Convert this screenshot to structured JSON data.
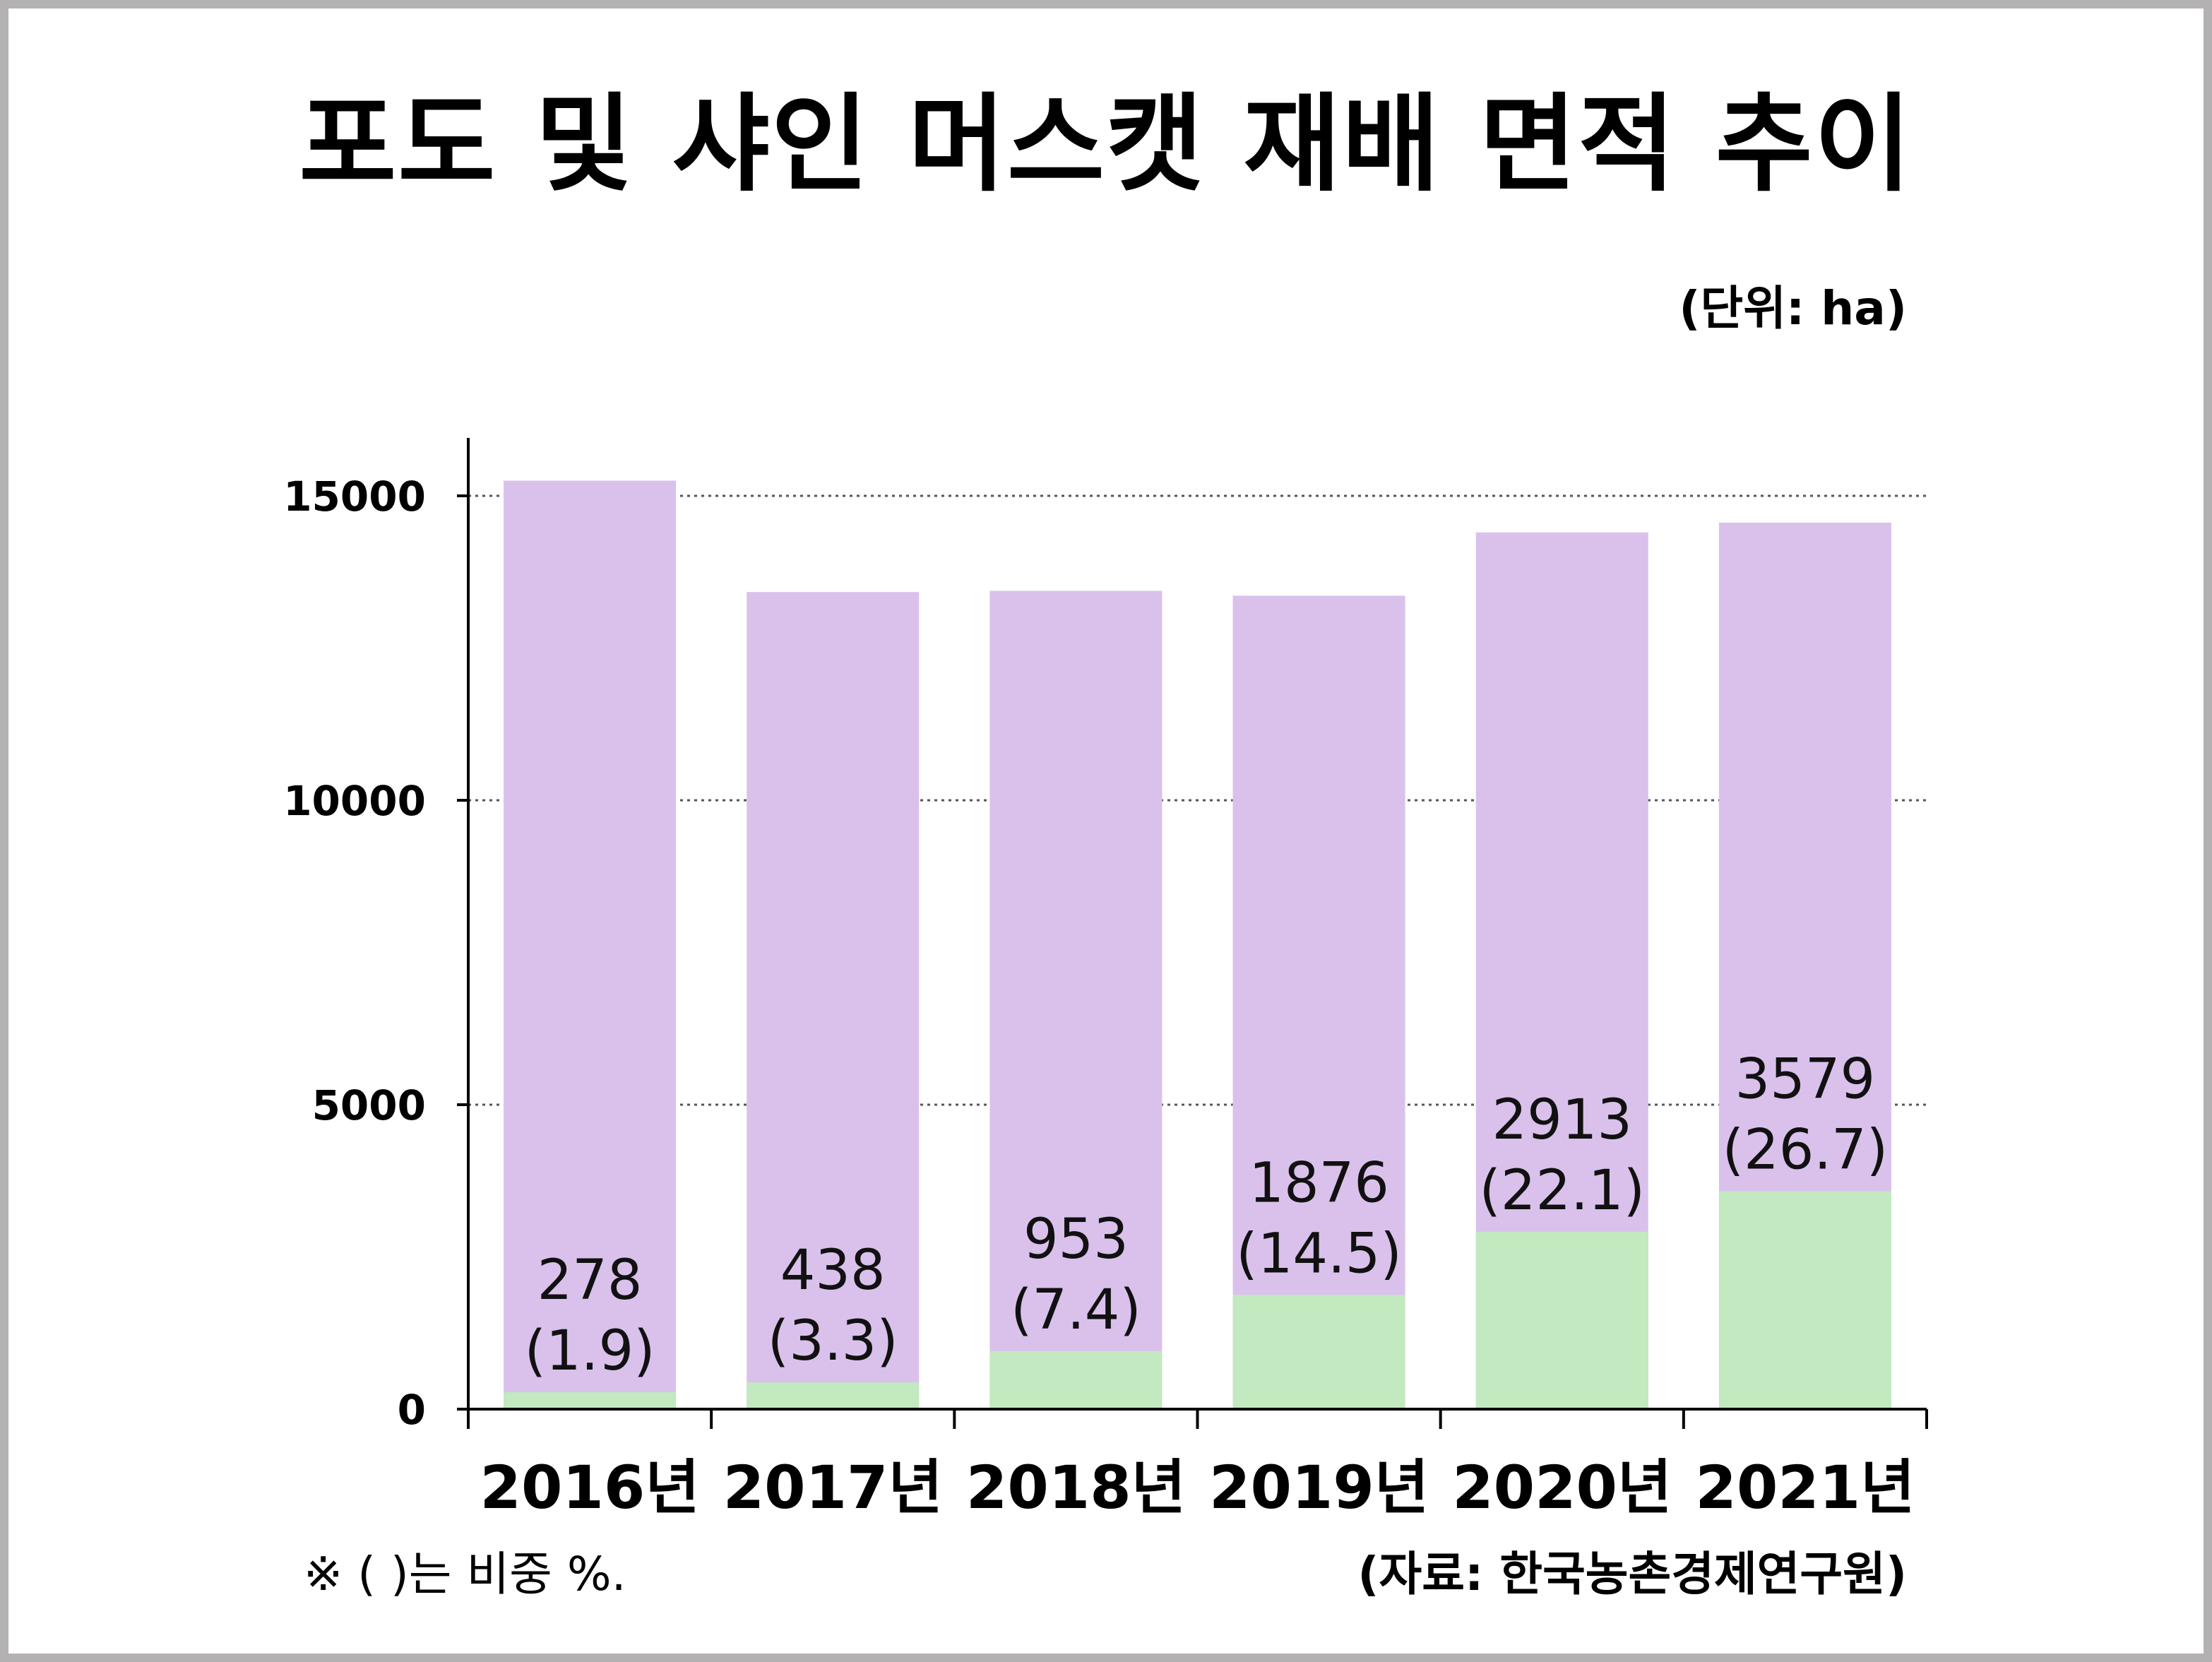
{
  "title": "포도 및 샤인 머스캣 재배 면적 추이",
  "unit_label": "(단위: ha)",
  "note": "※ ( )는 비중 %.",
  "source": "(자료: 한국농촌경제연구원)",
  "colors": {
    "total_bar": "#dac1ec",
    "shine_bar": "#c2e9bf",
    "axis": "#000000",
    "grid": "#555555",
    "frame": "#b3b1b1"
  },
  "chart_data": {
    "type": "bar",
    "stacked": true,
    "categories": [
      "2016년",
      "2017년",
      "2018년",
      "2019년",
      "2020년",
      "2021년"
    ],
    "series": [
      {
        "values": [
          278,
          438,
          953,
          1876,
          2913,
          3579
        ],
        "share_percent": [
          1.9,
          3.3,
          7.4,
          14.5,
          22.1,
          26.7
        ],
        "color": "#c2e9bf"
      },
      {
        "values": [
          15250,
          13420,
          13440,
          13360,
          14400,
          14560
        ],
        "color": "#dac1ec"
      }
    ],
    "data_labels": [
      {
        "value": "278",
        "share": "(1.9)"
      },
      {
        "value": "438",
        "share": "(3.3)"
      },
      {
        "value": "953",
        "share": "(7.4)"
      },
      {
        "value": "1876",
        "share": "(14.5)"
      },
      {
        "value": "2913",
        "share": "(22.1)"
      },
      {
        "value": "3579",
        "share": "(26.7)"
      }
    ],
    "y_ticks": [
      "0",
      "5000",
      "10000",
      "15000"
    ],
    "ylim": [
      0,
      16000
    ],
    "grid": "dotted horizontal",
    "legend": "none",
    "xlabel": "",
    "ylabel": ""
  }
}
